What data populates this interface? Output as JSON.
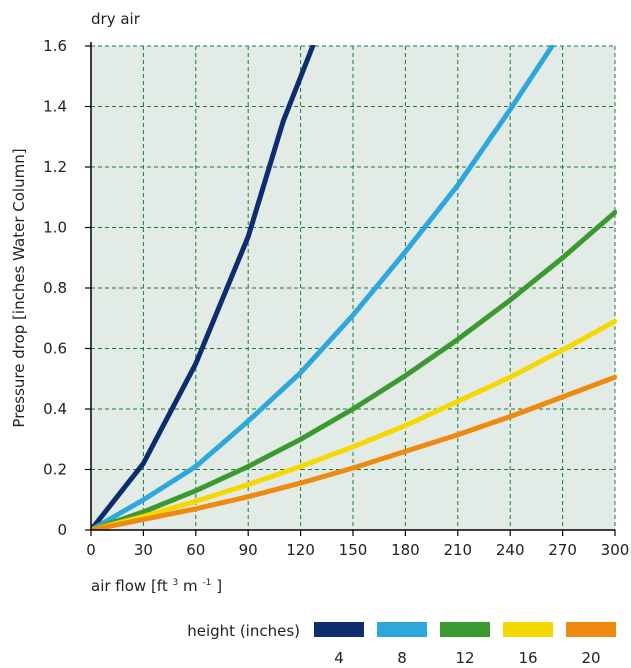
{
  "chart_data": {
    "type": "line",
    "title": "dry air",
    "xlabel_prefix": "air flow [ft",
    "xlabel_sup1": "3",
    "xlabel_mid": " m",
    "xlabel_sup2": "-1",
    "xlabel_suffix": "]",
    "ylabel": "Pressure drop [inches Water Column]",
    "xlim": [
      0,
      300
    ],
    "ylim": [
      0,
      1.6
    ],
    "xticks": [
      "0",
      "30",
      "60",
      "90",
      "120",
      "150",
      "180",
      "210",
      "240",
      "270",
      "300"
    ],
    "yticks": [
      "0",
      "0.2",
      "0.4",
      "0.6",
      "0.8",
      "1.0",
      "1.2",
      "1.4",
      "1.6"
    ],
    "grid": true,
    "legend_title": "height (inches)",
    "legend_position": "bottom",
    "series": [
      {
        "name": "4",
        "color": "#0d2d6e",
        "points": [
          [
            0,
            0
          ],
          [
            30,
            0.22
          ],
          [
            60,
            0.55
          ],
          [
            90,
            0.97
          ],
          [
            110,
            1.35
          ],
          [
            127,
            1.6
          ]
        ]
      },
      {
        "name": "8",
        "color": "#2ea8dc",
        "points": [
          [
            0,
            0
          ],
          [
            30,
            0.1
          ],
          [
            60,
            0.21
          ],
          [
            90,
            0.36
          ],
          [
            120,
            0.52
          ],
          [
            150,
            0.71
          ],
          [
            180,
            0.92
          ],
          [
            210,
            1.14
          ],
          [
            240,
            1.39
          ],
          [
            264,
            1.6
          ]
        ]
      },
      {
        "name": "12",
        "color": "#3b9a2f",
        "points": [
          [
            0,
            0
          ],
          [
            30,
            0.06
          ],
          [
            60,
            0.13
          ],
          [
            90,
            0.21
          ],
          [
            120,
            0.3
          ],
          [
            150,
            0.4
          ],
          [
            180,
            0.51
          ],
          [
            210,
            0.63
          ],
          [
            240,
            0.76
          ],
          [
            270,
            0.9
          ],
          [
            300,
            1.05
          ]
        ]
      },
      {
        "name": "16",
        "color": "#f5d800",
        "points": [
          [
            0,
            0
          ],
          [
            30,
            0.045
          ],
          [
            60,
            0.095
          ],
          [
            90,
            0.15
          ],
          [
            120,
            0.21
          ],
          [
            150,
            0.275
          ],
          [
            180,
            0.345
          ],
          [
            210,
            0.425
          ],
          [
            240,
            0.505
          ],
          [
            270,
            0.595
          ],
          [
            300,
            0.69
          ]
        ]
      },
      {
        "name": "20",
        "color": "#ee8a0f",
        "points": [
          [
            0,
            0
          ],
          [
            30,
            0.035
          ],
          [
            60,
            0.07
          ],
          [
            90,
            0.11
          ],
          [
            120,
            0.155
          ],
          [
            150,
            0.205
          ],
          [
            180,
            0.26
          ],
          [
            210,
            0.315
          ],
          [
            240,
            0.375
          ],
          [
            270,
            0.44
          ],
          [
            300,
            0.505
          ]
        ]
      }
    ]
  },
  "colors": {
    "plot_background": "#e3ebe7",
    "grid": "#1f7a3a"
  }
}
